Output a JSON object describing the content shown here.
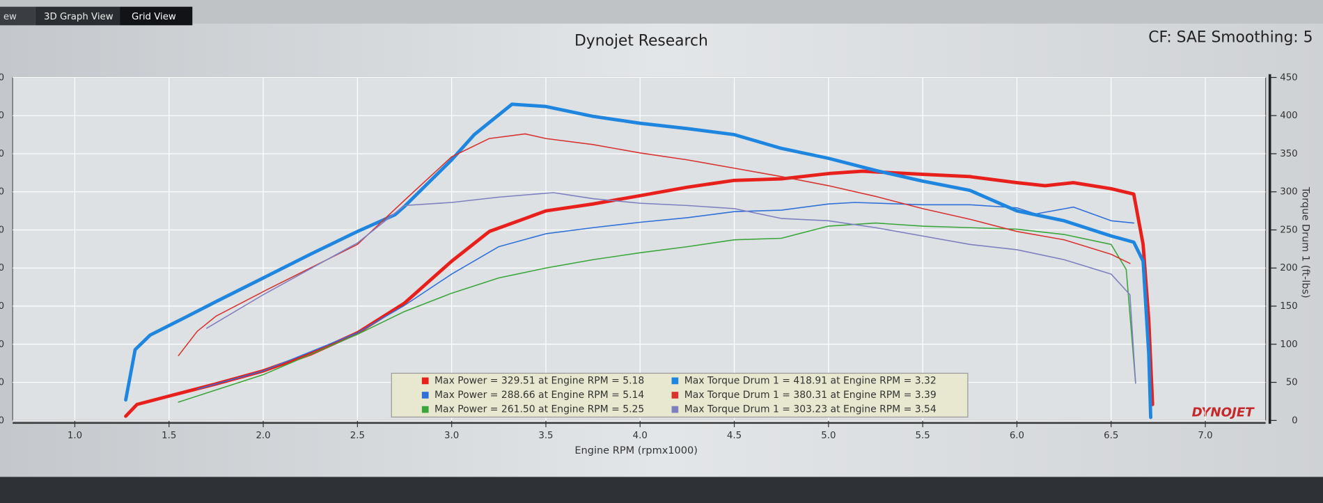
{
  "tabs": [
    "ew",
    "3D Graph View",
    "Grid View"
  ],
  "chart_data": {
    "type": "line",
    "title": "Dynojet Research",
    "subtitle": "CF: SAE Smoothing: 5",
    "x_label": "Engine RPM (rpmx1000)",
    "y2_label": "Torque Drum 1 (ft-lbs)",
    "logo": "DYNOJET",
    "xlim": [
      0.67,
      7.32
    ],
    "ylim": [
      0,
      450
    ],
    "xticks": [
      {
        "value": 1,
        "label": "1.0"
      },
      {
        "value": 1.5,
        "label": "1.5"
      },
      {
        "value": 2,
        "label": "2.0"
      },
      {
        "value": 2.5,
        "label": "2.5"
      },
      {
        "value": 3,
        "label": "3.0"
      },
      {
        "value": 3.5,
        "label": "3.5"
      },
      {
        "value": 4,
        "label": "4.0"
      },
      {
        "value": 4.5,
        "label": "4.5"
      },
      {
        "value": 5,
        "label": "5.0"
      },
      {
        "value": 5.5,
        "label": "5.5"
      },
      {
        "value": 6,
        "label": "6.0"
      },
      {
        "value": 6.5,
        "label": "6.5"
      },
      {
        "value": 7,
        "label": "7.0"
      }
    ],
    "yticks": [
      0,
      50,
      100,
      150,
      200,
      250,
      300,
      350,
      400,
      450
    ],
    "grid": true,
    "series": [
      {
        "name": "Max Power = 329.51 at Engine RPM = 5.18",
        "color": "#e8201c",
        "width": 4,
        "x": [
          1.27,
          1.33,
          1.5,
          1.75,
          2.0,
          2.25,
          2.5,
          2.75,
          3.0,
          3.2,
          3.5,
          3.75,
          4.0,
          4.25,
          4.5,
          4.75,
          5.0,
          5.18,
          5.5,
          5.75,
          6.0,
          6.15,
          6.3,
          6.5,
          6.62,
          6.67,
          6.7,
          6.72
        ],
        "values": [
          5.5,
          21,
          32,
          48,
          65,
          87,
          115,
          154,
          209,
          248,
          275,
          284,
          295,
          306,
          315,
          317,
          324,
          327,
          323,
          320,
          312,
          308,
          312,
          304,
          297,
          231,
          132,
          21
        ]
      },
      {
        "name": "Max Power = 288.66 at Engine RPM = 5.14",
        "color": "#2f6fd8",
        "width": 1.3,
        "x": [
          1.65,
          2.0,
          2.5,
          2.75,
          3.0,
          3.25,
          3.5,
          3.75,
          4.0,
          4.25,
          4.5,
          4.75,
          5.0,
          5.14,
          5.5,
          5.75,
          6.0,
          6.1,
          6.3,
          6.5,
          6.62
        ],
        "values": [
          41,
          65,
          115,
          151,
          192,
          228,
          245,
          253,
          260,
          266,
          274,
          276,
          284,
          286,
          283,
          283,
          279,
          271,
          280,
          262,
          259
        ]
      },
      {
        "name": "Max Power = 261.50 at Engine RPM = 5.25",
        "color": "#3aa63a",
        "width": 1.3,
        "x": [
          1.55,
          2.0,
          2.5,
          2.75,
          3.0,
          3.25,
          3.5,
          3.75,
          4.0,
          4.25,
          4.5,
          4.75,
          5.0,
          5.25,
          5.5,
          5.75,
          6.0,
          6.25,
          6.5,
          6.58,
          6.63
        ],
        "values": [
          24,
          60,
          113,
          143,
          167,
          187,
          200,
          211,
          220,
          228,
          237,
          239,
          255,
          259,
          255,
          253,
          251,
          244,
          231,
          198,
          49
        ]
      },
      {
        "name": "Max Torque Drum 1 = 418.91 at Engine RPM = 3.32",
        "color": "#1f86e0",
        "width": 4,
        "x": [
          1.27,
          1.32,
          1.4,
          1.6,
          1.75,
          2.0,
          2.25,
          2.5,
          2.7,
          2.75,
          3.0,
          3.12,
          3.32,
          3.5,
          3.75,
          4.0,
          4.25,
          4.5,
          4.75,
          5.0,
          5.25,
          5.5,
          5.75,
          6.0,
          6.25,
          6.5,
          6.62,
          6.67,
          6.7,
          6.71
        ],
        "values": [
          27,
          93,
          112,
          137,
          156,
          187,
          218,
          248,
          270,
          281,
          342,
          375,
          415,
          412,
          399,
          390,
          383,
          375,
          357,
          344,
          328,
          314,
          302,
          275,
          262,
          242,
          234,
          209,
          87,
          4
        ]
      },
      {
        "name": "Max Torque Drum 1 = 380.31 at Engine RPM = 3.39",
        "color": "#d8332e",
        "width": 1.3,
        "x": [
          1.55,
          1.65,
          1.75,
          2.0,
          2.25,
          2.5,
          2.75,
          3.0,
          3.2,
          3.39,
          3.5,
          3.75,
          4.0,
          4.25,
          4.5,
          4.75,
          5.0,
          5.25,
          5.5,
          5.75,
          6.0,
          6.25,
          6.5,
          6.6
        ],
        "values": [
          85,
          117,
          137,
          169,
          200,
          231,
          289,
          346,
          370,
          376,
          370,
          362,
          351,
          342,
          331,
          320,
          308,
          294,
          278,
          264,
          248,
          237,
          218,
          206
        ]
      },
      {
        "name": "Max Torque Drum 1 = 303.23 at Engine RPM = 3.54",
        "color": "#7d7fc0",
        "width": 1.3,
        "x": [
          1.7,
          2.0,
          2.5,
          2.75,
          3.0,
          3.25,
          3.54,
          3.75,
          4.0,
          4.25,
          4.5,
          4.75,
          5.0,
          5.25,
          5.5,
          5.75,
          6.0,
          6.25,
          6.5,
          6.6,
          6.63
        ],
        "values": [
          121,
          165,
          233,
          282,
          286,
          293,
          299,
          291,
          285,
          282,
          278,
          265,
          262,
          253,
          242,
          231,
          224,
          211,
          192,
          165,
          49
        ]
      }
    ]
  }
}
